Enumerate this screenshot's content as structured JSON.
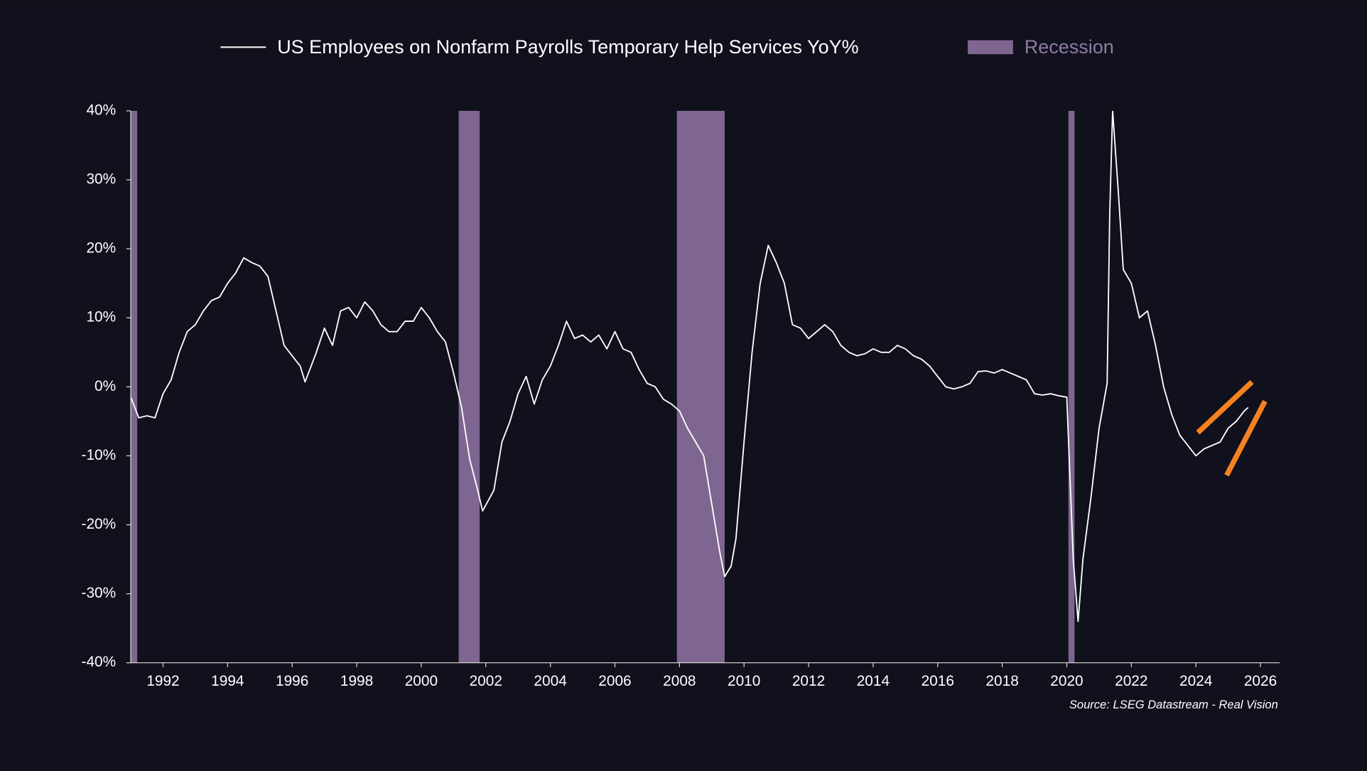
{
  "chart_data": {
    "type": "line",
    "source": "Source: LSEG Datastream - Real Vision",
    "xlim": [
      1991,
      2026.6
    ],
    "xticks": [
      1992,
      1994,
      1996,
      1998,
      2000,
      2002,
      2004,
      2006,
      2008,
      2010,
      2012,
      2014,
      2016,
      2018,
      2020,
      2022,
      2024,
      2026
    ],
    "ylim": [
      -40,
      40
    ],
    "yticks": [
      {
        "value": 40,
        "label": "40%"
      },
      {
        "value": 30,
        "label": "30%"
      },
      {
        "value": 20,
        "label": "20%"
      },
      {
        "value": 10,
        "label": "10%"
      },
      {
        "value": 0,
        "label": "0%"
      },
      {
        "value": -10,
        "label": "-10%"
      },
      {
        "value": -20,
        "label": "-20%"
      },
      {
        "value": -30,
        "label": "-30%"
      },
      {
        "value": -40,
        "label": "-40%"
      }
    ],
    "recessions": {
      "name": "Recession",
      "color": "#7e6690",
      "bands": [
        [
          1991.0,
          1991.2
        ],
        [
          2001.16,
          2001.81
        ],
        [
          2007.92,
          2009.4
        ],
        [
          2020.05,
          2020.24
        ]
      ]
    },
    "series": [
      {
        "name": "US Employees on Nonfarm Payrolls Temporary Help Services YoY%",
        "color": "#ffffff",
        "x": [
          1991.0,
          1991.25,
          1991.5,
          1991.75,
          1992.0,
          1992.25,
          1992.5,
          1992.75,
          1993.0,
          1993.25,
          1993.5,
          1993.75,
          1994.0,
          1994.25,
          1994.5,
          1994.75,
          1995.0,
          1995.25,
          1995.5,
          1995.75,
          1996.0,
          1996.25,
          1996.4,
          1996.75,
          1997.0,
          1997.25,
          1997.5,
          1997.75,
          1998.0,
          1998.25,
          1998.5,
          1998.75,
          1999.0,
          1999.25,
          1999.5,
          1999.75,
          2000.0,
          2000.25,
          2000.5,
          2000.75,
          2001.0,
          2001.25,
          2001.5,
          2001.75,
          2001.9,
          2002.25,
          2002.5,
          2002.75,
          2003.0,
          2003.25,
          2003.5,
          2003.75,
          2004.0,
          2004.25,
          2004.5,
          2004.75,
          2005.0,
          2005.25,
          2005.5,
          2005.75,
          2006.0,
          2006.25,
          2006.5,
          2006.75,
          2007.0,
          2007.25,
          2007.5,
          2007.75,
          2008.0,
          2008.25,
          2008.5,
          2008.75,
          2009.0,
          2009.25,
          2009.4,
          2009.6,
          2009.75,
          2010.0,
          2010.25,
          2010.5,
          2010.75,
          2011.0,
          2011.25,
          2011.5,
          2011.75,
          2012.0,
          2012.25,
          2012.5,
          2012.75,
          2013.0,
          2013.25,
          2013.5,
          2013.75,
          2014.0,
          2014.25,
          2014.5,
          2014.75,
          2015.0,
          2015.25,
          2015.5,
          2015.75,
          2016.0,
          2016.25,
          2016.5,
          2016.75,
          2017.0,
          2017.25,
          2017.5,
          2017.75,
          2018.0,
          2018.25,
          2018.5,
          2018.75,
          2019.0,
          2019.25,
          2019.5,
          2019.75,
          2020.0,
          2020.2,
          2020.35,
          2020.5,
          2020.75,
          2021.0,
          2021.25,
          2021.33,
          2021.42,
          2021.6,
          2021.75,
          2022.0,
          2022.25,
          2022.5,
          2022.75,
          2023.0,
          2023.25,
          2023.5,
          2023.75,
          2024.0,
          2024.25,
          2024.5,
          2024.75,
          2025.0,
          2025.25,
          2025.5,
          2025.62
        ],
        "values": [
          -1.5,
          -4.5,
          -4.2,
          -4.5,
          -1,
          1,
          5,
          8,
          9,
          11,
          12.5,
          13,
          15,
          16.5,
          18.7,
          18,
          17.5,
          16,
          11,
          6,
          4.5,
          3,
          0.7,
          5,
          8.5,
          6,
          11,
          11.5,
          10,
          12.3,
          11,
          9,
          8,
          8,
          9.5,
          9.5,
          11.5,
          10,
          8,
          6.5,
          2,
          -3,
          -10.5,
          -15,
          -18,
          -15,
          -8,
          -5,
          -1,
          1.5,
          -2.5,
          1,
          3,
          6,
          9.5,
          7,
          7.5,
          6.5,
          7.5,
          5.5,
          8,
          5.5,
          5,
          2.5,
          0.5,
          0,
          -1.8,
          -2.5,
          -3.5,
          -6,
          -8,
          -10,
          -17,
          -24,
          -27.5,
          -26,
          -22,
          -8,
          5,
          15,
          20.5,
          18,
          15,
          9,
          8.5,
          7,
          8,
          9,
          8,
          6,
          5,
          4.5,
          4.8,
          5.5,
          5,
          5,
          6,
          5.5,
          4.5,
          4,
          3,
          1.5,
          0,
          -0.3,
          0,
          0.5,
          2.2,
          2.3,
          2,
          2.5,
          2,
          1.5,
          1,
          -1,
          -1.2,
          -1,
          -1.3,
          -1.5,
          -25,
          -34,
          -25,
          -16,
          -6,
          0.5,
          25,
          40,
          28,
          17,
          15,
          10,
          11,
          6,
          0,
          -4,
          -7,
          -8.5,
          -10,
          -9,
          -8.5,
          -8,
          -6,
          -5,
          -3.5,
          -3
        ]
      }
    ]
  }
}
